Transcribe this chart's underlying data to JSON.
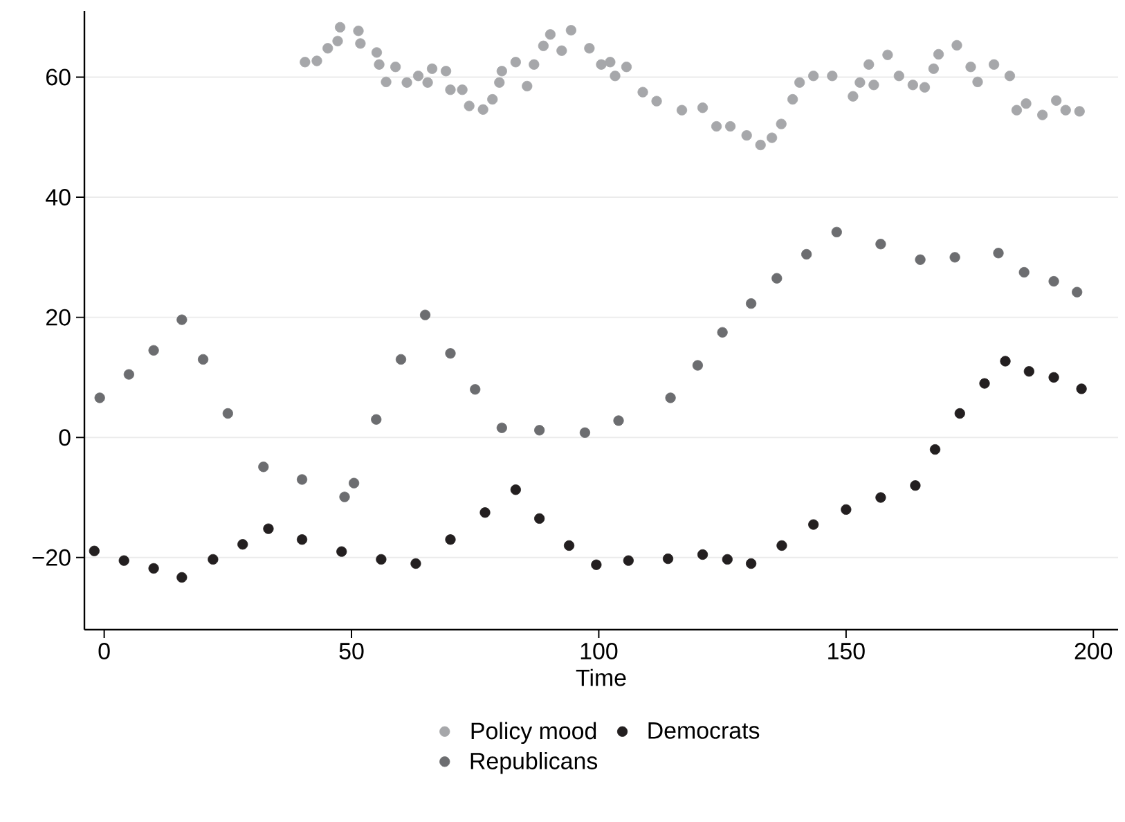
{
  "chart_data": {
    "type": "scatter",
    "xlabel": "Time",
    "xlim": [
      -4,
      205
    ],
    "ylim": [
      -32,
      71
    ],
    "xticks": [
      0,
      50,
      100,
      150,
      200
    ],
    "yticks": [
      {
        "value": -20,
        "label": "−20"
      },
      0,
      20,
      40,
      60
    ],
    "grid": "y",
    "legend": "bottom",
    "marker": "circle",
    "series": [
      {
        "name": "Policy mood",
        "color": "#a6a7aa",
        "x": [
          40.6,
          43,
          45.2,
          47.2,
          47.7,
          51.4,
          51.8,
          55.1,
          55.6,
          57,
          58.9,
          61.2,
          63.5,
          65.4,
          66.3,
          69.1,
          70,
          72.4,
          73.8,
          76.6,
          78.5,
          79.9,
          80.4,
          83.2,
          85.5,
          86.9,
          88.8,
          90.2,
          92.5,
          94.4,
          98.1,
          100.5,
          102.3,
          103.3,
          105.6,
          108.9,
          111.7,
          116.8,
          121,
          123.8,
          126.6,
          129.9,
          132.7,
          135,
          136.9,
          139.2,
          140.6,
          143.4,
          147.2,
          151.4,
          152.8,
          154.6,
          155.6,
          158.4,
          160.7,
          163.5,
          165.9,
          167.7,
          168.7,
          172.4,
          175.2,
          176.6,
          179.9,
          183.1,
          184.5,
          186.4,
          189.7,
          192.5,
          194.4,
          197.2
        ],
        "values": [
          62.5,
          62.7,
          64.8,
          66,
          68.3,
          67.7,
          65.6,
          64.1,
          62.1,
          59.2,
          61.7,
          59.1,
          60.2,
          59.1,
          61.4,
          61,
          57.9,
          57.9,
          55.2,
          54.6,
          56.3,
          59.1,
          61,
          62.5,
          58.5,
          62.1,
          65.2,
          67.1,
          64.4,
          67.8,
          64.8,
          62.1,
          62.5,
          60.2,
          61.7,
          57.5,
          56,
          54.5,
          54.9,
          51.8,
          51.8,
          50.3,
          48.7,
          49.9,
          52.2,
          56.3,
          59.1,
          60.2,
          60.2,
          56.8,
          59.1,
          62.1,
          58.7,
          63.7,
          60.2,
          58.7,
          58.3,
          61.4,
          63.8,
          65.3,
          61.7,
          59.2,
          62.1,
          60.2,
          54.5,
          55.6,
          53.7,
          56.1,
          54.5,
          54.3
        ]
      },
      {
        "name": "Democrats",
        "color": "#231f20",
        "x": [
          -2,
          4,
          10,
          15.7,
          22,
          28,
          33.2,
          40,
          48,
          56,
          63,
          70,
          77,
          83.2,
          88,
          94,
          99.5,
          106,
          114,
          121,
          126,
          130.8,
          137,
          143.4,
          150,
          157,
          164,
          168,
          173,
          178,
          182.2,
          187,
          192,
          197.6
        ],
        "values": [
          -18.9,
          -20.5,
          -21.8,
          -23.3,
          -20.3,
          -17.8,
          -15.2,
          -17,
          -19,
          -20.3,
          -21,
          -17,
          -12.5,
          -8.7,
          -13.5,
          -18,
          -21.2,
          -20.5,
          -20.2,
          -19.5,
          -20.3,
          -21,
          -18,
          -14.5,
          -12,
          -10,
          -8,
          -2,
          4,
          9,
          12.7,
          11,
          10,
          8.1
        ]
      },
      {
        "name": "Republicans",
        "color": "#6c6d70",
        "x": [
          -0.9,
          5,
          10,
          15.7,
          20,
          25,
          32.2,
          40,
          48.6,
          50.5,
          55,
          60,
          64.9,
          70,
          75,
          80.4,
          88,
          97.2,
          104,
          114.5,
          120,
          125,
          130.8,
          136,
          142,
          148.1,
          157,
          165,
          172,
          180.8,
          186,
          192,
          196.7
        ],
        "values": [
          6.6,
          10.5,
          14.5,
          19.6,
          13,
          4,
          -4.9,
          -7,
          -9.9,
          -7.6,
          3,
          13,
          20.4,
          14,
          8,
          1.6,
          1.2,
          0.8,
          2.8,
          6.6,
          12,
          17.5,
          22.3,
          26.5,
          30.5,
          34.2,
          32.2,
          29.6,
          30,
          30.7,
          27.5,
          26,
          24.2
        ]
      }
    ]
  }
}
